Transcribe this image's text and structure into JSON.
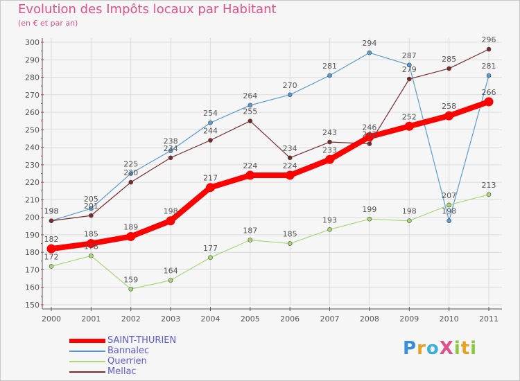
{
  "header": {
    "title": "Evolution des Impôts locaux par Habitant",
    "subtitle": "(en € et par an)"
  },
  "logo": {
    "text": "ProXiti",
    "letters": [
      {
        "ch": "P",
        "color": "#3a8fd8"
      },
      {
        "ch": "r",
        "color": "#e8a020"
      },
      {
        "ch": "o",
        "color": "#3ab0d8"
      },
      {
        "ch": "X",
        "color": "#e0508a"
      },
      {
        "ch": "i",
        "color": "#8cc83c"
      },
      {
        "ch": "t",
        "color": "#e8a020"
      },
      {
        "ch": "i",
        "color": "#8cc83c"
      }
    ]
  },
  "chart_data": {
    "type": "line",
    "title": "Evolution des Impôts locaux par Habitant",
    "subtitle": "(en € et par an)",
    "x": [
      2000,
      2001,
      2002,
      2003,
      2004,
      2005,
      2006,
      2007,
      2008,
      2009,
      2010,
      2011
    ],
    "ylim": [
      150,
      300
    ],
    "yticks": [
      150,
      160,
      170,
      180,
      190,
      200,
      210,
      220,
      230,
      240,
      250,
      260,
      270,
      280,
      290,
      300
    ],
    "grid": true,
    "legend_position": "bottom-left",
    "series": [
      {
        "name": "Bannalec",
        "color": "#5a9ad0",
        "values": [
          198,
          205,
          225,
          238,
          254,
          264,
          270,
          281,
          294,
          287,
          198,
          281
        ]
      },
      {
        "name": "Querrien",
        "color": "#a8d878",
        "values": [
          172,
          178,
          159,
          164,
          177,
          187,
          185,
          193,
          199,
          198,
          207,
          213
        ]
      },
      {
        "name": "Mellac",
        "color": "#7a2a2a",
        "values": [
          198,
          201,
          220,
          234,
          244,
          255,
          234,
          243,
          242,
          279,
          285,
          296
        ]
      },
      {
        "name": "SAINT-THURIEN",
        "color": "#ff0000",
        "values": [
          182,
          185,
          189,
          198,
          217,
          224,
          224,
          233,
          246,
          252,
          258,
          266
        ]
      }
    ],
    "legend_order": [
      "SAINT-THURIEN",
      "Bannalec",
      "Querrien",
      "Mellac"
    ]
  }
}
